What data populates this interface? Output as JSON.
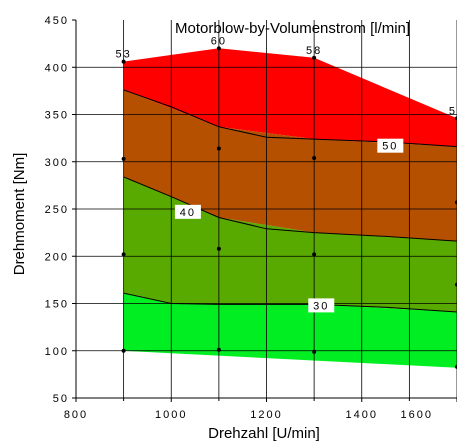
{
  "chart_data": {
    "type": "area",
    "title": "Motorblow-by-Volumenstrom [l/min]",
    "xlabel": "Drehzahl [U/min]",
    "ylabel": "Drehmoment [Nm]",
    "xlim": [
      800,
      1600
    ],
    "ylim": [
      50,
      450
    ],
    "x_ticks": [
      "800",
      "1000",
      "1200",
      "1400",
      "1600"
    ],
    "y_ticks": [
      "50",
      "100",
      "150",
      "200",
      "250",
      "300",
      "350",
      "400",
      "450"
    ],
    "grid": true,
    "bands": [
      {
        "color": "#ff0000",
        "upper": [
          [
            900,
            406
          ],
          [
            1100,
            420
          ],
          [
            1300,
            410
          ],
          [
            1600,
            346
          ]
        ],
        "lower": [
          [
            900,
            376
          ],
          [
            1100,
            337
          ],
          [
            1300,
            324
          ],
          [
            1600,
            316
          ]
        ]
      },
      {
        "color": "#b55000",
        "upper": [
          [
            900,
            376
          ],
          [
            1100,
            337
          ],
          [
            1300,
            324
          ],
          [
            1600,
            316
          ]
        ],
        "lower": [
          [
            900,
            284
          ],
          [
            1100,
            241
          ],
          [
            1300,
            225
          ],
          [
            1600,
            216
          ]
        ]
      },
      {
        "color": "#58aa00",
        "upper": [
          [
            900,
            284
          ],
          [
            1100,
            241
          ],
          [
            1300,
            225
          ],
          [
            1600,
            216
          ]
        ],
        "lower": [
          [
            900,
            161
          ],
          [
            1000,
            150
          ],
          [
            1100,
            149
          ],
          [
            1300,
            149
          ],
          [
            1600,
            141
          ]
        ]
      },
      {
        "color": "#00ee22",
        "upper": [
          [
            900,
            161
          ],
          [
            1000,
            150
          ],
          [
            1100,
            149
          ],
          [
            1300,
            149
          ],
          [
            1600,
            141
          ]
        ],
        "lower": [
          [
            900,
            100
          ],
          [
            1600,
            82
          ]
        ]
      }
    ],
    "contour_lines": [
      {
        "label": "50",
        "points": [
          [
            900,
            376
          ],
          [
            1000,
            358
          ],
          [
            1100,
            337
          ],
          [
            1200,
            326
          ],
          [
            1300,
            324
          ],
          [
            1450,
            321
          ],
          [
            1600,
            316
          ]
        ]
      },
      {
        "label": "40",
        "points": [
          [
            900,
            284
          ],
          [
            1000,
            263
          ],
          [
            1100,
            241
          ],
          [
            1200,
            229
          ],
          [
            1300,
            225
          ],
          [
            1450,
            221
          ],
          [
            1600,
            216
          ]
        ]
      },
      {
        "label": "30",
        "points": [
          [
            900,
            161
          ],
          [
            1000,
            150
          ],
          [
            1100,
            149
          ],
          [
            1300,
            149
          ],
          [
            1450,
            146
          ],
          [
            1600,
            141
          ]
        ]
      }
    ],
    "contour_labels": [
      {
        "text": "50",
        "x": 1460,
        "y": 317
      },
      {
        "text": "40",
        "x": 1035,
        "y": 247
      },
      {
        "text": "30",
        "x": 1315,
        "y": 148
      }
    ],
    "measurement_points": [
      {
        "x": 900,
        "y": 406,
        "label": "53"
      },
      {
        "x": 1100,
        "y": 420,
        "label": "60"
      },
      {
        "x": 1300,
        "y": 410,
        "label": "58"
      },
      {
        "x": 1600,
        "y": 346,
        "label": "52"
      },
      {
        "x": 900,
        "y": 303
      },
      {
        "x": 900,
        "y": 202
      },
      {
        "x": 900,
        "y": 100
      },
      {
        "x": 1100,
        "y": 314
      },
      {
        "x": 1100,
        "y": 208
      },
      {
        "x": 1100,
        "y": 101
      },
      {
        "x": 1300,
        "y": 304
      },
      {
        "x": 1300,
        "y": 202
      },
      {
        "x": 1300,
        "y": 99
      },
      {
        "x": 1600,
        "y": 257
      },
      {
        "x": 1600,
        "y": 170
      },
      {
        "x": 1600,
        "y": 83
      }
    ]
  }
}
